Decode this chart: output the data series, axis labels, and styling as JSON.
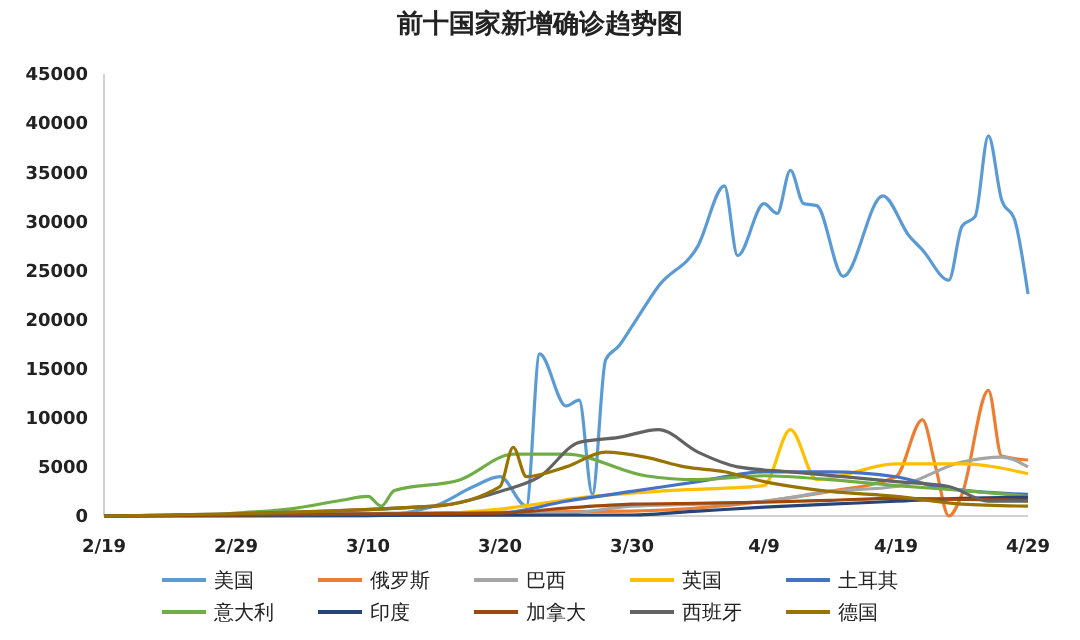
{
  "chart_data": {
    "type": "line",
    "title": "前十国家新增确诊趋势图",
    "legend": "bottom",
    "grid": false,
    "xlim": [
      "--02-19",
      "--04-29"
    ],
    "xticks": [
      {
        "value": "--02-19",
        "label": "2/19"
      },
      {
        "value": "--02-29",
        "label": "2/29"
      },
      {
        "value": "--03-10",
        "label": "3/10"
      },
      {
        "value": "--03-20",
        "label": "3/20"
      },
      {
        "value": "--03-30",
        "label": "3/30"
      },
      {
        "value": "--04-09",
        "label": "4/9"
      },
      {
        "value": "--04-19",
        "label": "4/19"
      },
      {
        "value": "--04-29",
        "label": "4/29"
      }
    ],
    "ylim": [
      0,
      45000
    ],
    "yticks": [
      0,
      5000,
      10000,
      15000,
      20000,
      25000,
      30000,
      35000,
      40000,
      45000
    ],
    "series": [
      {
        "name": "美国",
        "color": "#5b9bd5",
        "x": [
          "--02-19",
          "--03-10",
          "--03-15",
          "--03-18",
          "--03-20",
          "--03-22",
          "--03-23",
          "--03-25",
          "--03-26",
          "--03-27",
          "--03-28",
          "--03-29",
          "--03-30",
          "--04-01",
          "--04-04",
          "--04-06",
          "--04-07",
          "--04-09",
          "--04-10",
          "--04-11",
          "--04-12",
          "--04-13",
          "--04-15",
          "--04-18",
          "--04-20",
          "--04-21",
          "--04-23",
          "--04-24",
          "--04-25",
          "--04-26",
          "--04-27",
          "--04-28",
          "--04-29"
        ],
        "values": [
          0,
          0,
          1000,
          3000,
          4000,
          1000,
          16500,
          11200,
          11800,
          2200,
          15900,
          17300,
          19300,
          23400,
          27500,
          33600,
          26500,
          31800,
          30800,
          35200,
          31800,
          31600,
          24400,
          32600,
          28500,
          27100,
          24000,
          29500,
          30500,
          38700,
          32200,
          30100,
          22600
        ]
      },
      {
        "name": "俄罗斯",
        "color": "#ed7d31",
        "x": [
          "--02-19",
          "--03-30",
          "--04-09",
          "--04-14",
          "--04-19",
          "--04-21",
          "--04-22",
          "--04-23",
          "--04-24",
          "--04-26",
          "--04-27",
          "--04-29"
        ],
        "values": [
          0,
          500,
          1500,
          2500,
          4000,
          9800,
          5000,
          0,
          2200,
          12800,
          6100,
          5700
        ]
      },
      {
        "name": "巴西",
        "color": "#a5a5a5",
        "x": [
          "--02-19",
          "--03-25",
          "--03-30",
          "--04-04",
          "--04-09",
          "--04-14",
          "--04-19",
          "--04-24",
          "--04-27",
          "--04-29"
        ],
        "values": [
          0,
          300,
          1000,
          1200,
          1500,
          2500,
          3000,
          5500,
          6000,
          5000
        ]
      },
      {
        "name": "英国",
        "color": "#ffc000",
        "x": [
          "--02-19",
          "--03-15",
          "--03-20",
          "--03-27",
          "--04-02",
          "--04-09",
          "--04-11",
          "--04-13",
          "--04-19",
          "--04-24",
          "--04-29"
        ],
        "values": [
          0,
          200,
          700,
          2000,
          2600,
          3100,
          8800,
          3700,
          5300,
          5300,
          4300
        ]
      },
      {
        "name": "土耳其",
        "color": "#4472c4",
        "x": [
          "--02-19",
          "--03-20",
          "--03-25",
          "--03-30",
          "--04-04",
          "--04-09",
          "--04-14",
          "--04-19",
          "--04-22",
          "--04-25",
          "--04-29"
        ],
        "values": [
          0,
          300,
          1500,
          2500,
          3500,
          4500,
          4500,
          4000,
          3000,
          2500,
          2200
        ]
      },
      {
        "name": "意大利",
        "color": "#70ad47",
        "x": [
          "--02-19",
          "--02-27",
          "--02-29",
          "--03-04",
          "--03-08",
          "--03-10",
          "--03-11",
          "--03-12",
          "--03-17",
          "--03-21",
          "--03-25",
          "--03-31",
          "--04-04",
          "--04-09",
          "--04-14",
          "--04-19",
          "--04-24",
          "--04-29"
        ],
        "values": [
          0,
          100,
          300,
          700,
          1600,
          2000,
          1000,
          2600,
          3700,
          6300,
          6300,
          4100,
          3700,
          4100,
          3700,
          3100,
          2600,
          2000
        ]
      },
      {
        "name": "印度",
        "color": "#264478",
        "x": [
          "--02-19",
          "--03-30",
          "--04-04",
          "--04-09",
          "--04-14",
          "--04-19",
          "--04-24",
          "--04-29"
        ],
        "values": [
          0,
          100,
          500,
          900,
          1200,
          1500,
          1800,
          1900
        ]
      },
      {
        "name": "加拿大",
        "color": "#9e480e",
        "x": [
          "--02-19",
          "--03-20",
          "--03-25",
          "--03-30",
          "--04-04",
          "--04-09",
          "--04-14",
          "--04-19",
          "--04-24",
          "--04-29"
        ],
        "values": [
          0,
          300,
          800,
          1200,
          1300,
          1400,
          1600,
          1800,
          1700,
          1600
        ]
      },
      {
        "name": "西班牙",
        "color": "#636363",
        "x": [
          "--02-19",
          "--03-15",
          "--03-20",
          "--03-23",
          "--03-26",
          "--03-29",
          "--04-01",
          "--04-04",
          "--04-07",
          "--04-11",
          "--04-15",
          "--04-19",
          "--04-23",
          "--04-26",
          "--04-29"
        ],
        "values": [
          0,
          1000,
          2500,
          4000,
          7500,
          8000,
          8800,
          6500,
          5000,
          4500,
          4000,
          3500,
          3000,
          1500,
          1500
        ]
      },
      {
        "name": "德国",
        "color": "#997300",
        "x": [
          "--02-19",
          "--03-15",
          "--03-20",
          "--03-21",
          "--03-22",
          "--03-25",
          "--03-28",
          "--03-31",
          "--04-03",
          "--04-06",
          "--04-09",
          "--04-14",
          "--04-19",
          "--04-24",
          "--04-29"
        ],
        "values": [
          0,
          1000,
          3000,
          7000,
          4000,
          5000,
          6500,
          6000,
          5000,
          4500,
          3500,
          2500,
          2000,
          1200,
          1000
        ]
      }
    ]
  }
}
